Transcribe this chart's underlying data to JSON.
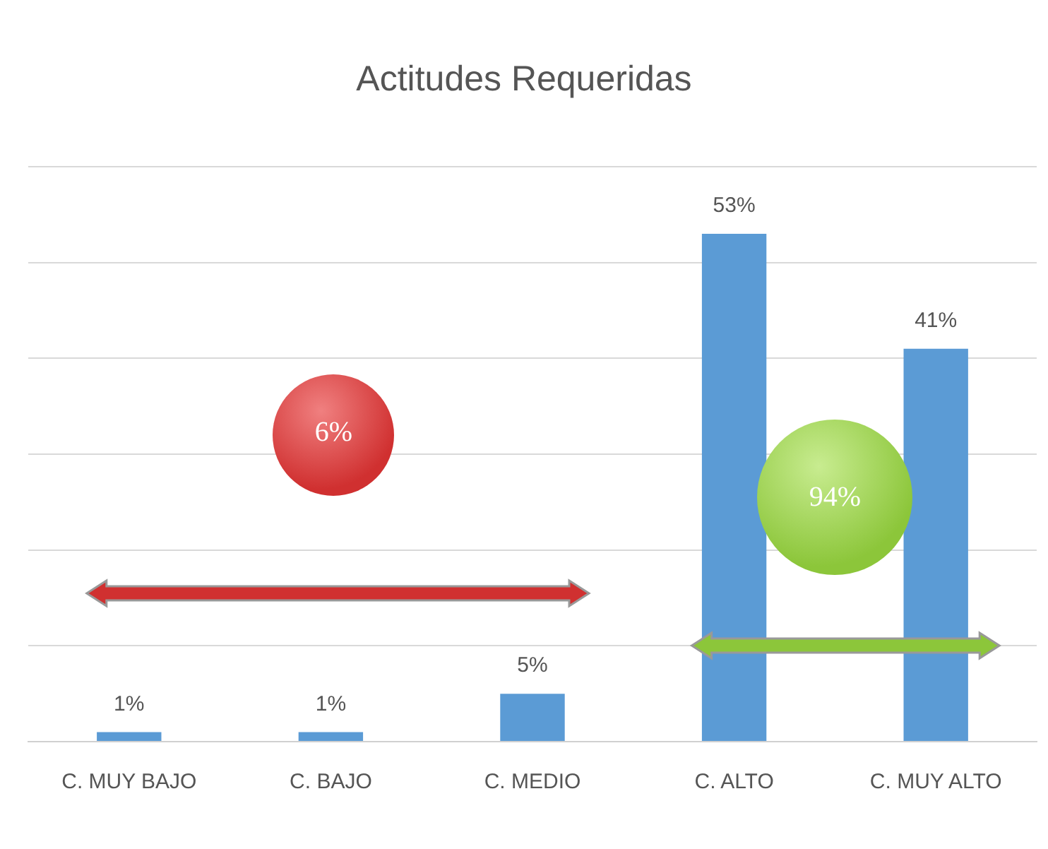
{
  "chart_data": {
    "type": "bar",
    "title": "Actitudes Requeridas",
    "categories": [
      "C. MUY BAJO",
      "C. BAJO",
      "C. MEDIO",
      "C. ALTO",
      "C. MUY ALTO"
    ],
    "values": [
      1,
      1,
      5,
      53,
      41
    ],
    "value_labels": [
      "1%",
      "1%",
      "5%",
      "53%",
      "41%"
    ],
    "color": "#5b9bd5",
    "ylim": [
      0,
      60
    ],
    "yticks": [
      {
        "value": 0,
        "label": null
      },
      {
        "value": 10,
        "label": null
      },
      {
        "value": 20,
        "label": null
      },
      {
        "value": 30,
        "label": null
      },
      {
        "value": 40,
        "label": null
      },
      {
        "value": 50,
        "label": null
      },
      {
        "value": 60,
        "label": null
      }
    ],
    "tick_labels": "x",
    "grid": "y",
    "annotations": [
      "6%",
      "94%"
    ]
  }
}
